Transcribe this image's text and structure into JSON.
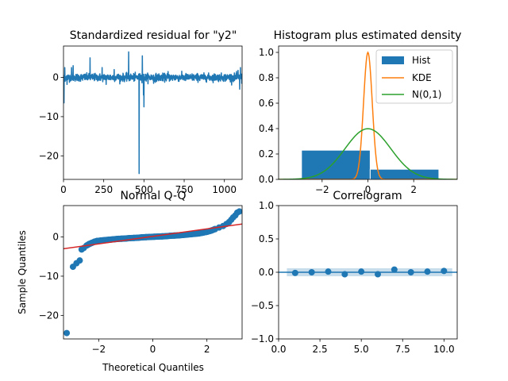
{
  "figure_title": "",
  "chart_data": [
    {
      "panel": "standardized-residual",
      "type": "line",
      "title": "Standardized residual for \"y2\"",
      "xlabel": "",
      "ylabel": "",
      "xlim": [
        0,
        1110
      ],
      "ylim": [
        -26,
        8
      ],
      "xticks": [
        0,
        250,
        500,
        750,
        1000
      ],
      "xtick_labels": [
        "0",
        "250",
        "500",
        "750",
        "1000"
      ],
      "yticks": [
        0,
        -10,
        -20
      ],
      "ytick_labels": [
        "0",
        "−10",
        "−20"
      ],
      "color": "#1f77b4",
      "n_points": 1110,
      "noise_level": 0.8,
      "spikes": [
        {
          "x": 3,
          "y": -6.5
        },
        {
          "x": 8,
          "y": 2.5
        },
        {
          "x": 22,
          "y": -1.8
        },
        {
          "x": 50,
          "y": 2.5
        },
        {
          "x": 60,
          "y": 3.0
        },
        {
          "x": 165,
          "y": 5.0
        },
        {
          "x": 240,
          "y": 2.5
        },
        {
          "x": 265,
          "y": -1.8
        },
        {
          "x": 315,
          "y": 2.0
        },
        {
          "x": 405,
          "y": 6.5
        },
        {
          "x": 470,
          "y": -24.5
        },
        {
          "x": 490,
          "y": 5.5
        },
        {
          "x": 497,
          "y": -4.5
        },
        {
          "x": 500,
          "y": -7.5
        },
        {
          "x": 560,
          "y": -1.5
        },
        {
          "x": 650,
          "y": 1.5
        },
        {
          "x": 1085,
          "y": 1.8
        },
        {
          "x": 1095,
          "y": -3.0
        },
        {
          "x": 1100,
          "y": 2.5
        },
        {
          "x": 1108,
          "y": -1.5
        }
      ]
    },
    {
      "panel": "histogram-density",
      "type": "bar",
      "title": "Histogram plus estimated density",
      "xlabel": "",
      "ylabel": "",
      "xlim": [
        -3.9,
        3.9
      ],
      "ylim": [
        0,
        1.05
      ],
      "xticks": [
        -2,
        0,
        2
      ],
      "xtick_labels": [
        "−2",
        "0",
        "2"
      ],
      "yticks": [
        0.0,
        0.2,
        0.4,
        0.6,
        0.8,
        1.0
      ],
      "ytick_labels": [
        "0.0",
        "0.2",
        "0.4",
        "0.6",
        "0.8",
        "1.0"
      ],
      "hist": {
        "name": "Hist",
        "color": "#1f77b4",
        "bins": [
          {
            "x0": -2.9,
            "x1": 0.1,
            "value": 0.23
          },
          {
            "x0": 0.1,
            "x1": 3.1,
            "value": 0.08
          }
        ]
      },
      "kde": {
        "name": "KDE",
        "color": "#ff7f0e",
        "peak": 1.0,
        "center": 0.0,
        "sigma": 0.19
      },
      "normal": {
        "name": "N(0,1)",
        "color": "#2ca02c"
      },
      "legend": [
        "Hist",
        "KDE",
        "N(0,1)"
      ],
      "legend_position": "top-right"
    },
    {
      "panel": "normal-qq",
      "type": "scatter",
      "title": "Normal Q-Q",
      "xlabel": "Theoretical Quantiles",
      "ylabel": "Sample Quantiles",
      "xlim": [
        -3.3,
        3.3
      ],
      "ylim": [
        -26,
        8
      ],
      "xticks": [
        -2,
        0,
        2
      ],
      "xtick_labels": [
        "−2",
        "0",
        "2"
      ],
      "yticks": [
        0,
        -10,
        -20
      ],
      "ytick_labels": [
        "0",
        "−10",
        "−20"
      ],
      "point_color": "#1f77b4",
      "line_color": "#d62728",
      "reference_line": {
        "x": [
          -3.3,
          3.3
        ],
        "y": [
          -3.0,
          3.3
        ]
      },
      "points": [
        [
          -3.18,
          -24.5
        ],
        [
          -2.95,
          -7.6
        ],
        [
          -2.82,
          -6.7
        ],
        [
          -2.7,
          -6.0
        ],
        [
          -2.63,
          -3.2
        ],
        [
          -2.55,
          -2.8
        ],
        [
          -2.45,
          -2.2
        ],
        [
          -2.35,
          -1.8
        ],
        [
          -2.25,
          -1.5
        ],
        [
          -2.15,
          -1.2
        ],
        [
          -2.05,
          -1.0
        ],
        [
          -1.9,
          -0.9
        ],
        [
          -1.75,
          -0.8
        ],
        [
          -1.6,
          -0.7
        ],
        [
          -1.45,
          -0.6
        ],
        [
          -1.3,
          -0.5
        ],
        [
          -1.15,
          -0.45
        ],
        [
          -1.0,
          -0.4
        ],
        [
          -0.85,
          -0.3
        ],
        [
          -0.7,
          -0.25
        ],
        [
          -0.55,
          -0.2
        ],
        [
          -0.4,
          -0.1
        ],
        [
          -0.25,
          -0.05
        ],
        [
          -0.1,
          0.0
        ],
        [
          0.05,
          0.05
        ],
        [
          0.2,
          0.1
        ],
        [
          0.35,
          0.15
        ],
        [
          0.5,
          0.2
        ],
        [
          0.65,
          0.3
        ],
        [
          0.8,
          0.35
        ],
        [
          0.95,
          0.4
        ],
        [
          1.1,
          0.5
        ],
        [
          1.25,
          0.6
        ],
        [
          1.4,
          0.7
        ],
        [
          1.55,
          0.8
        ],
        [
          1.7,
          0.9
        ],
        [
          1.85,
          1.1
        ],
        [
          2.0,
          1.3
        ],
        [
          2.15,
          1.6
        ],
        [
          2.3,
          2.0
        ],
        [
          2.45,
          2.4
        ],
        [
          2.6,
          2.8
        ],
        [
          2.72,
          3.3
        ],
        [
          2.82,
          3.8
        ],
        [
          2.9,
          4.4
        ],
        [
          2.97,
          5.0
        ],
        [
          3.05,
          5.5
        ],
        [
          3.12,
          6.2
        ],
        [
          3.2,
          6.5
        ]
      ]
    },
    {
      "panel": "correlogram",
      "type": "scatter",
      "title": "Correlogram",
      "xlabel": "",
      "ylabel": "",
      "xlim": [
        0,
        10.8
      ],
      "ylim": [
        -1.0,
        1.0
      ],
      "xticks": [
        0.0,
        2.5,
        5.0,
        7.5,
        10.0
      ],
      "xtick_labels": [
        "0.0",
        "2.5",
        "5.0",
        "7.5",
        "10.0"
      ],
      "yticks": [
        1.0,
        0.5,
        0.0,
        -0.5,
        -1.0
      ],
      "ytick_labels": [
        "1.0",
        "0.5",
        "0.0",
        "−0.5",
        "−1.0"
      ],
      "color": "#1f77b4",
      "confidence_band": [
        -0.06,
        0.06
      ],
      "lags": [
        1,
        2,
        3,
        4,
        5,
        6,
        7,
        8,
        9,
        10
      ],
      "acf": [
        -0.01,
        0.0,
        0.01,
        -0.03,
        0.01,
        -0.03,
        0.04,
        0.0,
        0.01,
        0.02
      ]
    }
  ]
}
